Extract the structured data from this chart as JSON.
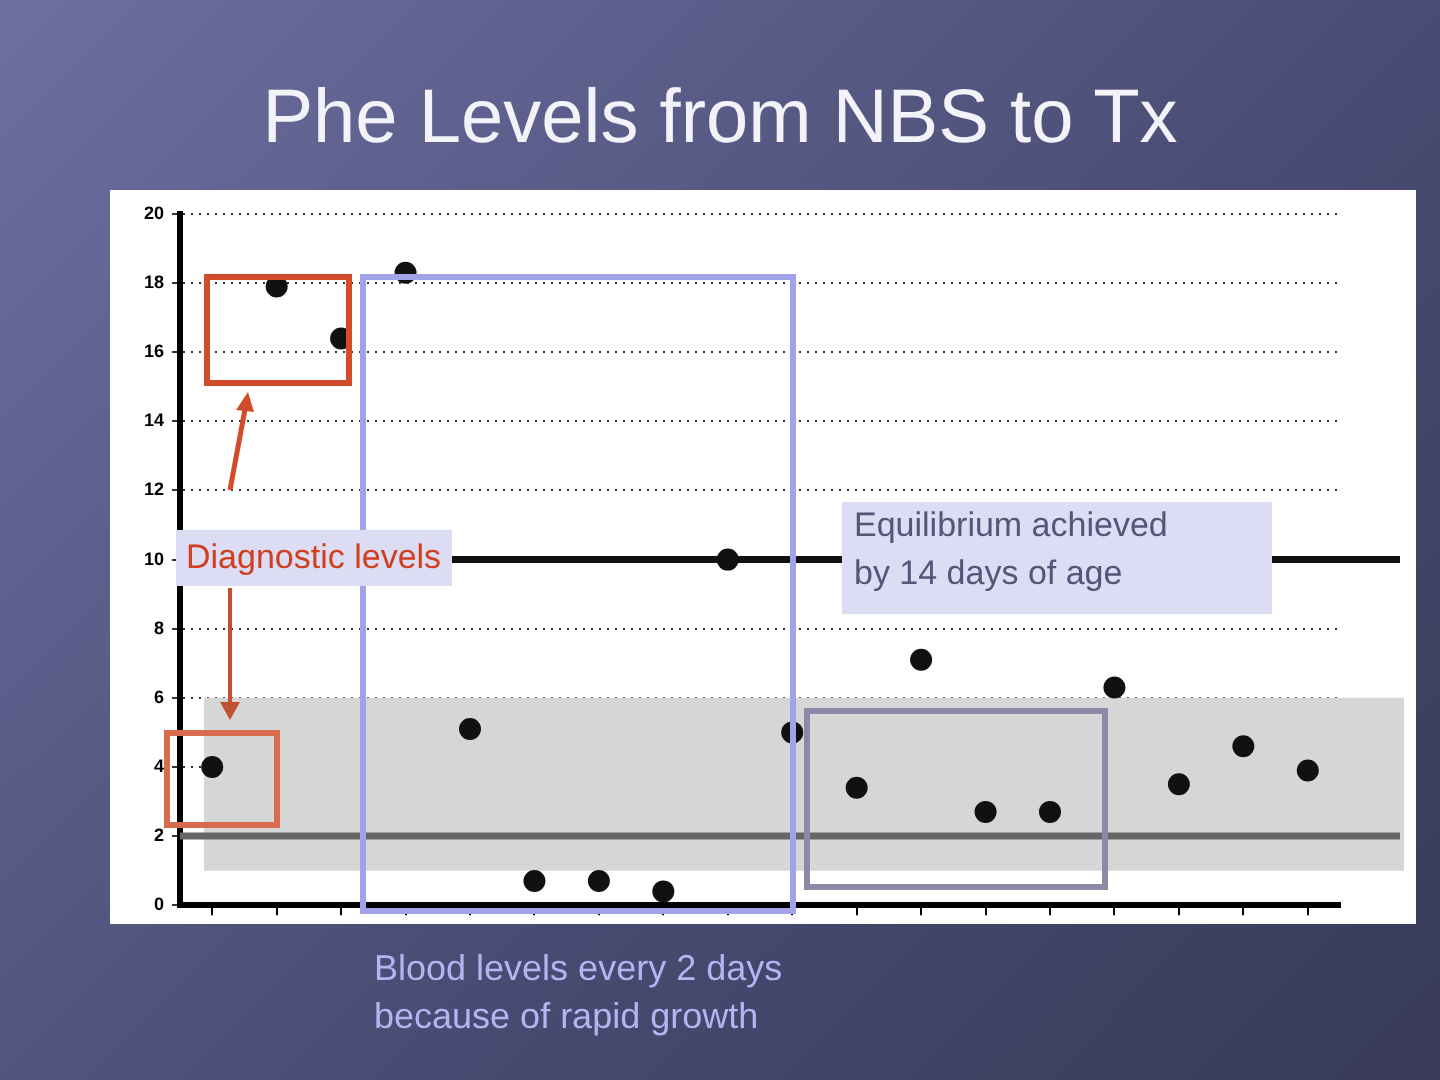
{
  "chart_data": {
    "type": "scatter",
    "title": "Phe Levels from NBS to Tx",
    "categories": [
      null,
      null,
      null,
      null,
      null,
      null,
      null,
      null,
      null,
      null,
      null,
      null,
      null,
      null,
      null,
      null,
      null,
      null
    ],
    "series": [
      {
        "color": "#111111",
        "values": [
          4,
          17.9,
          16.4,
          18.3,
          5.1,
          0.7,
          0.7,
          0.4,
          10,
          5,
          3.4,
          7.1,
          2.7,
          2.7,
          6.3,
          3.5,
          4.6,
          3.9
        ]
      }
    ],
    "ylim": [
      0,
      20
    ],
    "yticks": [
      0,
      2,
      4,
      6,
      8,
      10,
      12,
      14,
      16,
      18,
      20
    ],
    "grid": "y",
    "tick_labels": "y",
    "marker": "circle",
    "ref_lines": [
      {
        "axis": "y",
        "value": 10,
        "color": "#111111"
      },
      {
        "axis": "y",
        "value": 2,
        "color": "#666666"
      }
    ],
    "bands": [
      {
        "axis": "y",
        "from": 1,
        "to": 6,
        "color": "#d6d6d6"
      }
    ],
    "annotations": [
      "Diagnostic levels",
      "Equilibrium achieved by 14 days of age",
      "Blood levels every 2 days because of rapid growth"
    ]
  }
}
